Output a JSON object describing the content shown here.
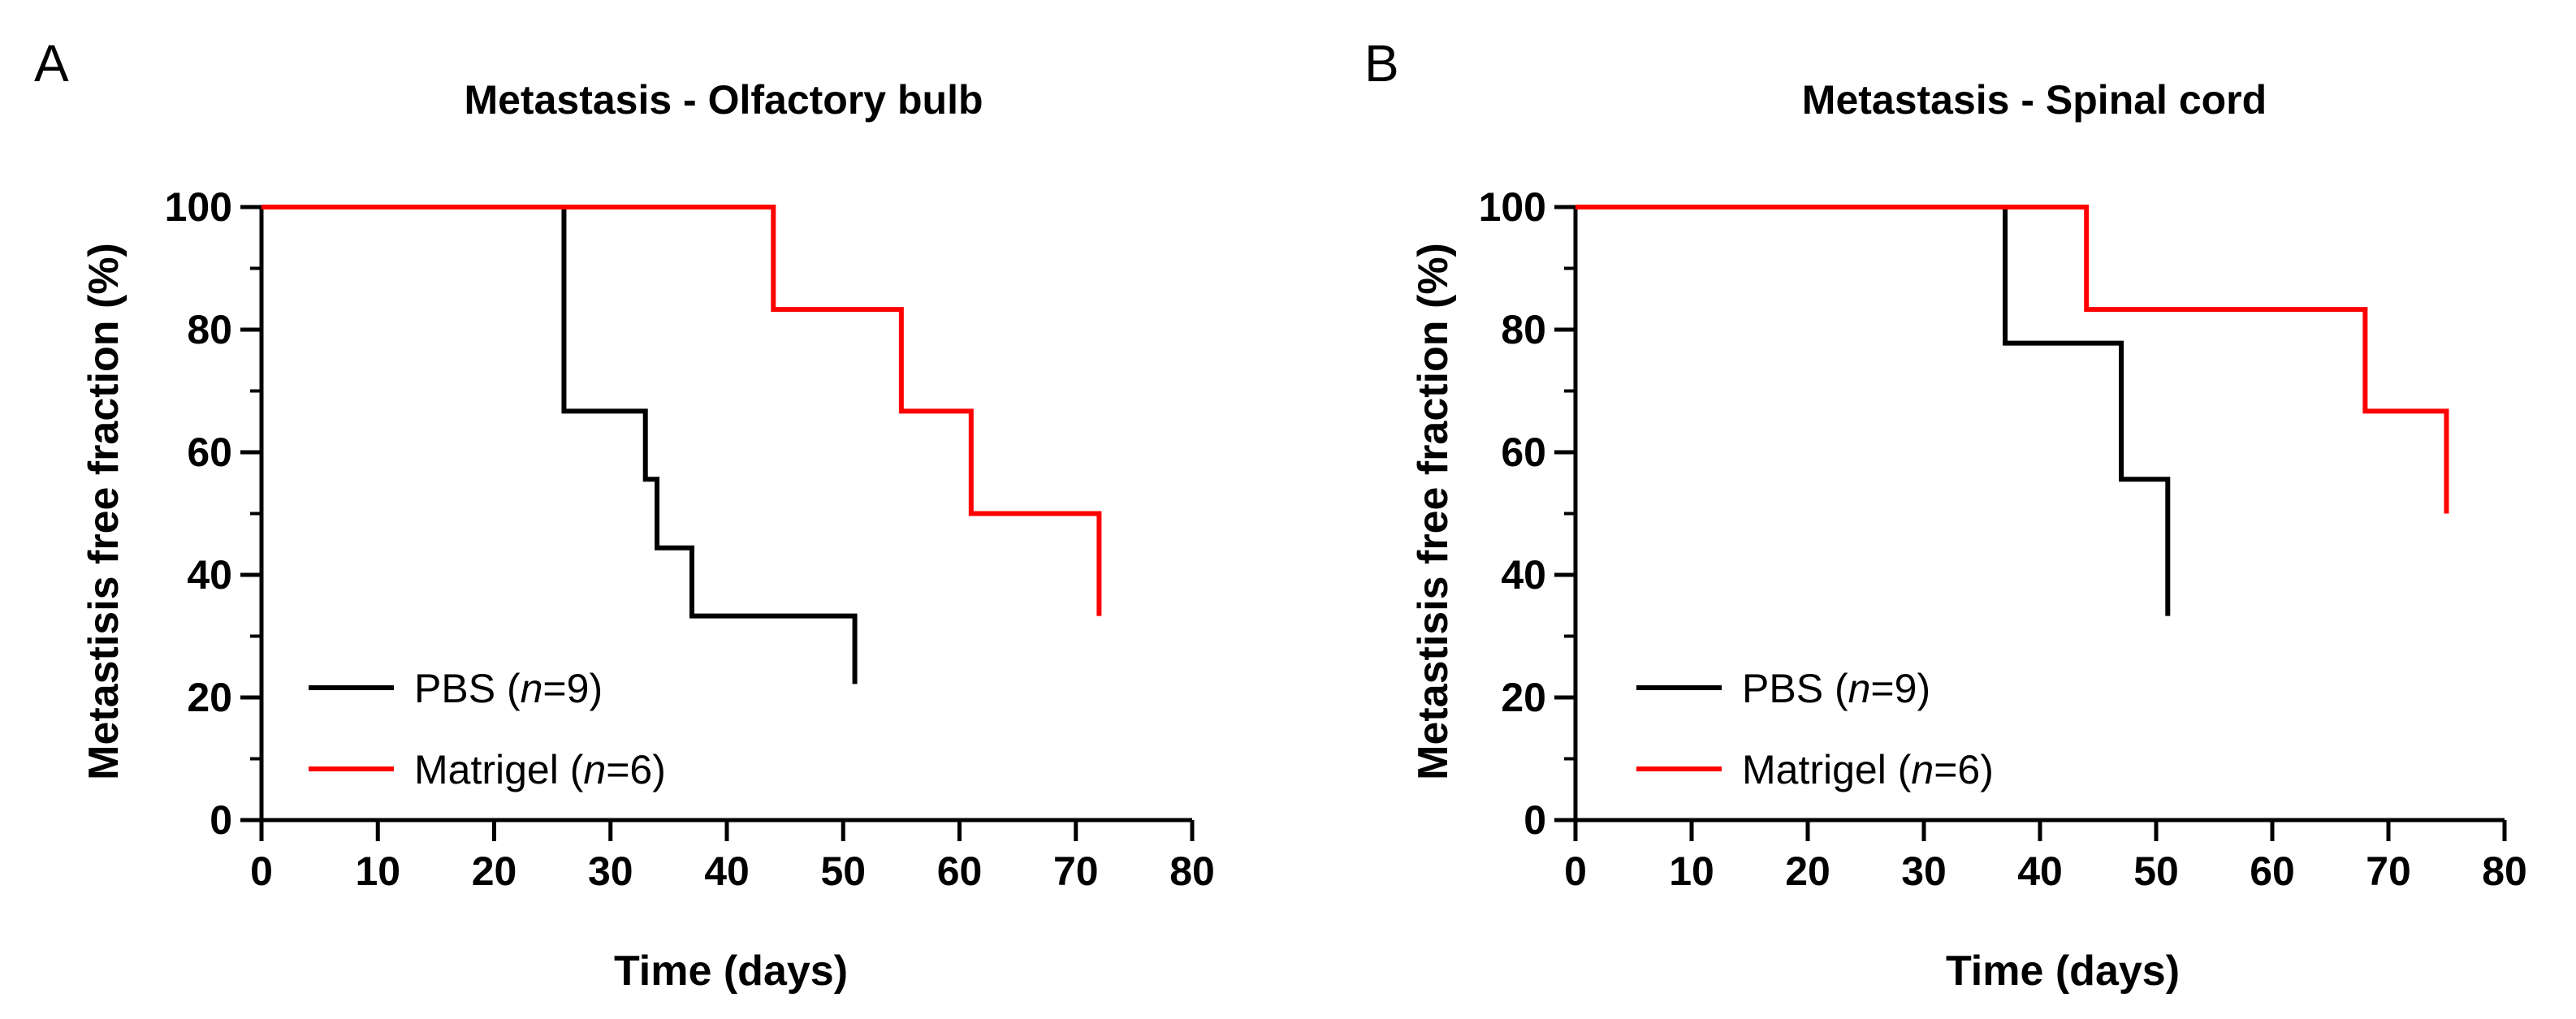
{
  "chart_data": [
    {
      "type": "line",
      "step": true,
      "panel": "A",
      "title": "Metastasis - Olfactory bulb",
      "xlabel": "Time (days)",
      "ylabel": "Metastisis free fraction  (%)",
      "xlim": [
        0,
        80
      ],
      "ylim": [
        0,
        100
      ],
      "xticks": [
        0,
        10,
        20,
        30,
        40,
        50,
        60,
        70,
        80
      ],
      "yticks": [
        0,
        20,
        40,
        60,
        80,
        100
      ],
      "legend_position": "bottom-left",
      "series": [
        {
          "name": "PBS",
          "n_label": "n",
          "n_value": "9",
          "color": "#000000",
          "points": [
            [
              0,
              100
            ],
            [
              26,
              66.7
            ],
            [
              33,
              55.6
            ],
            [
              34,
              44.4
            ],
            [
              37,
              33.3
            ],
            [
              51,
              22.2
            ]
          ]
        },
        {
          "name": "Matrigel",
          "n_label": "n",
          "n_value": "6",
          "color": "#ff0000",
          "points": [
            [
              0,
              100
            ],
            [
              44,
              83.3
            ],
            [
              55,
              66.7
            ],
            [
              61,
              50
            ],
            [
              72,
              33.3
            ]
          ]
        }
      ]
    },
    {
      "type": "line",
      "step": true,
      "panel": "B",
      "title": "Metastasis - Spinal cord",
      "xlabel": "Time (days)",
      "ylabel": "Metastisis free fraction  (%)",
      "xlim": [
        0,
        80
      ],
      "ylim": [
        0,
        100
      ],
      "xticks": [
        0,
        10,
        20,
        30,
        40,
        50,
        60,
        70,
        80
      ],
      "yticks": [
        0,
        20,
        40,
        60,
        80,
        100
      ],
      "legend_position": "bottom-left",
      "series": [
        {
          "name": "PBS",
          "n_label": "n",
          "n_value": "9",
          "color": "#000000",
          "points": [
            [
              0,
              100
            ],
            [
              37,
              77.8
            ],
            [
              47,
              55.6
            ],
            [
              51,
              33.3
            ]
          ]
        },
        {
          "name": "Matrigel",
          "n_label": "n",
          "n_value": "6",
          "color": "#ff0000",
          "points": [
            [
              0,
              100
            ],
            [
              44,
              83.3
            ],
            [
              68,
              66.7
            ],
            [
              75,
              50
            ]
          ]
        }
      ]
    }
  ]
}
